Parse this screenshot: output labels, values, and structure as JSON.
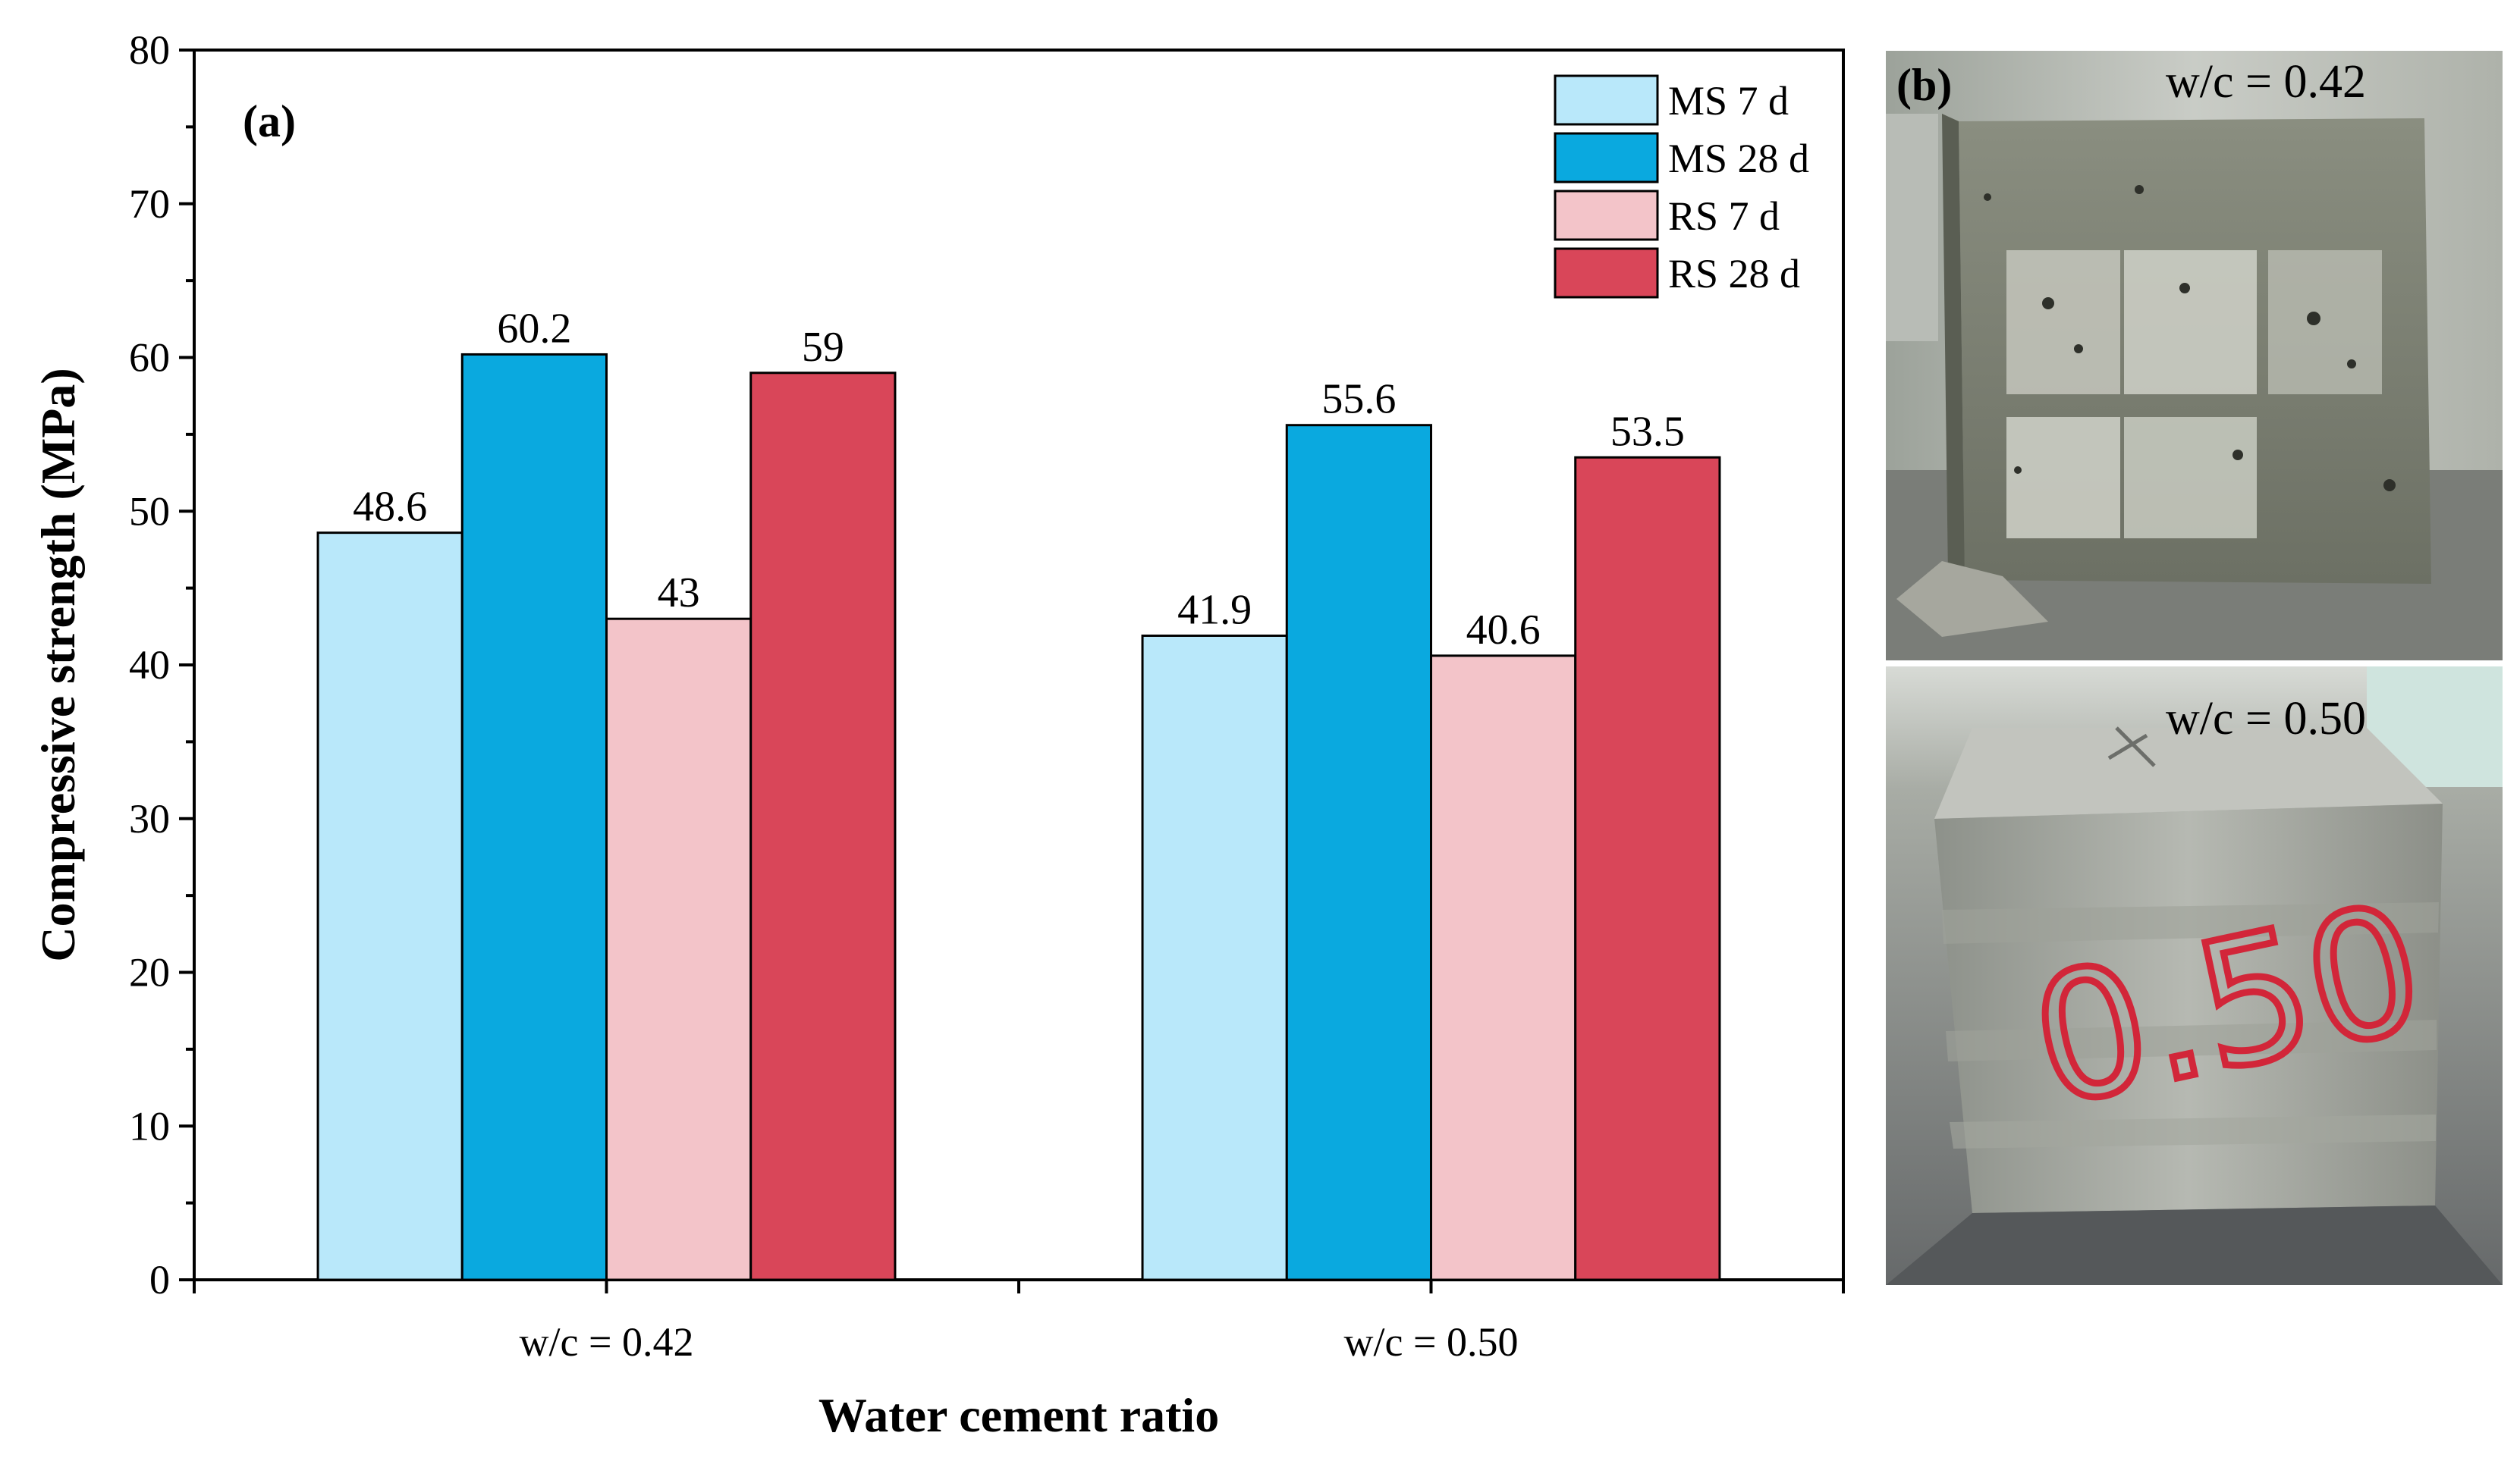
{
  "chart_data": {
    "type": "bar",
    "panel_label": "(a)",
    "xlabel": "Water cement ratio",
    "ylabel": "Compressive strength (MPa)",
    "ylim": [
      0,
      80
    ],
    "yticks": [
      "0",
      "10",
      "20",
      "30",
      "40",
      "50",
      "60",
      "70",
      "80"
    ],
    "yminor_step": 5,
    "categories": [
      "w/c = 0.42",
      "w/c = 0.50"
    ],
    "series": [
      {
        "name": "MS 7 d",
        "color": "#b9e8fa",
        "values": [
          48.6,
          41.9
        ],
        "labels": [
          "48.6",
          "41.9"
        ]
      },
      {
        "name": "MS 28 d",
        "color": "#0aa9df",
        "values": [
          60.2,
          55.6
        ],
        "labels": [
          "60.2",
          "55.6"
        ]
      },
      {
        "name": "RS 7 d",
        "color": "#f3c4c9",
        "values": [
          43,
          40.6
        ],
        "labels": [
          "43",
          "40.6"
        ]
      },
      {
        "name": "RS 28 d",
        "color": "#d94659",
        "values": [
          59,
          53.5
        ],
        "labels": [
          "59",
          "53.5"
        ]
      }
    ],
    "legend_position": "top-right"
  },
  "photos": {
    "panel_label": "(b)",
    "top_caption": "w/c = 0.42",
    "bottom_caption": "w/c = 0.50",
    "bottom_marking": "0.50"
  }
}
